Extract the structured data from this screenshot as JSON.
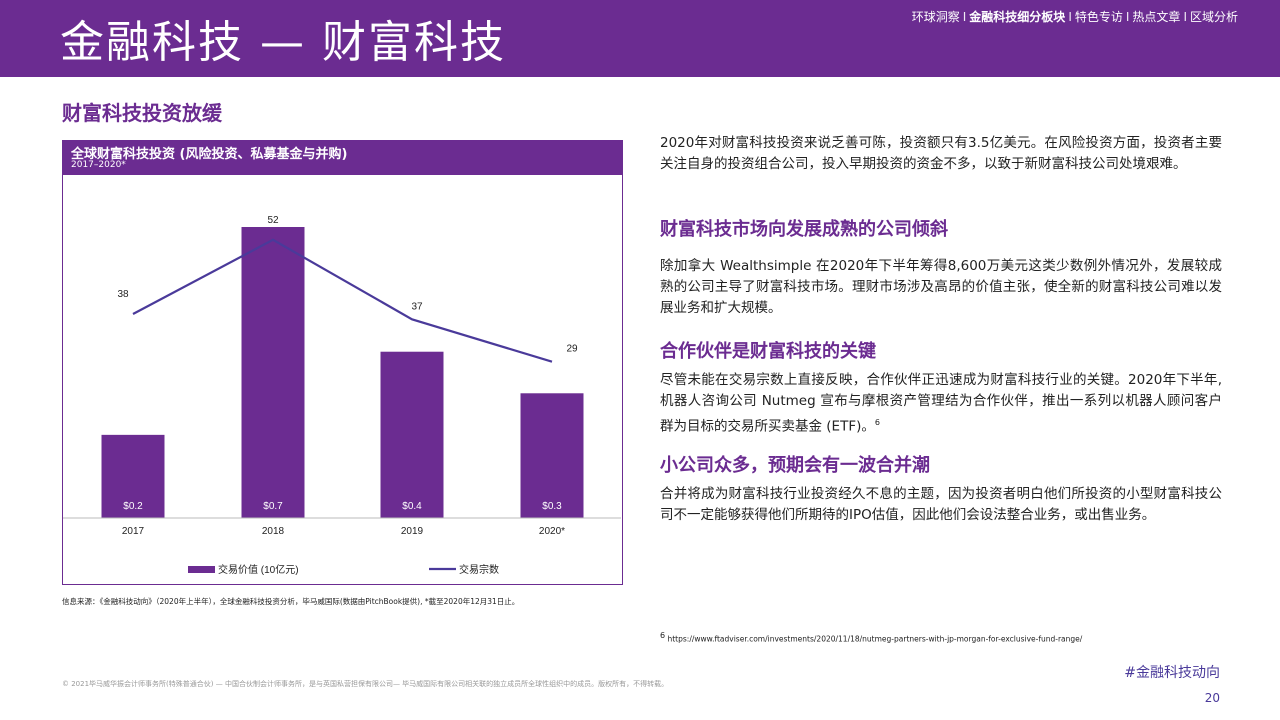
{
  "header": {
    "title": "金融科技 — 财富科技",
    "nav": [
      {
        "label": "环球洞察",
        "active": false
      },
      {
        "label": "金融科技细分板块",
        "active": true
      },
      {
        "label": "特色专访",
        "active": false
      },
      {
        "label": "热点文章",
        "active": false
      },
      {
        "label": "区域分析",
        "active": false
      }
    ],
    "separator": "I"
  },
  "section_title": "财富科技投资放缓",
  "chart_data": {
    "type": "bar",
    "title": "全球财富科技投资 (风险投资、私募基金与并购)",
    "subtitle": "2017–2020*",
    "categories": [
      "2017",
      "2018",
      "2019",
      "2020*"
    ],
    "series": [
      {
        "name": "交易价值 (10亿元)",
        "type": "bar",
        "values": [
          0.2,
          0.7,
          0.4,
          0.3
        ],
        "labels": [
          "$0.2",
          "$0.7",
          "$0.4",
          "$0.3"
        ],
        "color": "#6b2c91"
      },
      {
        "name": "交易宗数",
        "type": "line",
        "values": [
          38,
          52,
          37,
          29
        ],
        "labels": [
          "38",
          "52",
          "37",
          "29"
        ],
        "color": "#4a3a9a"
      }
    ],
    "legend": "bottom",
    "grid": false
  },
  "source_note": "信息来源：《金融科技动向》（2020年上半年），全球金融科技投资分析，毕马威国际(数据由PitchBook提供), *截至2020年12月31日止。",
  "right": {
    "intro": "2020年对财富科技投资来说乏善可陈，投资额只有3.5亿美元。在风险投资方面，投资者主要关注自身的投资组合公司，投入早期投资的资金不多，以致于新财富科技公司处境艰难。",
    "h1": "财富科技市场向发展成熟的公司倾斜",
    "p1": "除加拿大 Wealthsimple 在2020年下半年筹得8,600万美元这类少数例外情况外，发展较成熟的公司主导了财富科技市场。理财市场涉及高昂的价值主张，使全新的财富科技公司难以发展业务和扩大规模。",
    "h2": "合作伙伴是财富科技的关键",
    "p2": "尽管未能在交易宗数上直接反映，合作伙伴正迅速成为财富科技行业的关键。2020年下半年, 机器人咨询公司 Nutmeg 宣布与摩根资产管理结为合作伙伴，推出一系列以机器人顾问客户群为目标的交易所买卖基金 (ETF)。",
    "p2_ref": "6",
    "h3": "小公司众多，预期会有一波合并潮",
    "p3": "合并将成为财富科技行业投资经久不息的主题，因为投资者明白他们所投资的小型财富科技公司不一定能够获得他们所期待的IPO估值，因此他们会设法整合业务，或出售业务。"
  },
  "footnote": {
    "ref": "6",
    "text": "https://www.ftadviser.com/investments/2020/11/18/nutmeg-partners-with-jp-morgan-for-exclusive-fund-range/"
  },
  "hashtag": "#金融科技动向",
  "copyright": "© 2021毕马威华振会计师事务所(特殊普通合伙) — 中国合伙制会计师事务所，是与英国私营担保有限公司— 毕马威国际有限公司相关联的独立成员所全球性组织中的成员。版权所有，不得转载。",
  "page_number": "20"
}
